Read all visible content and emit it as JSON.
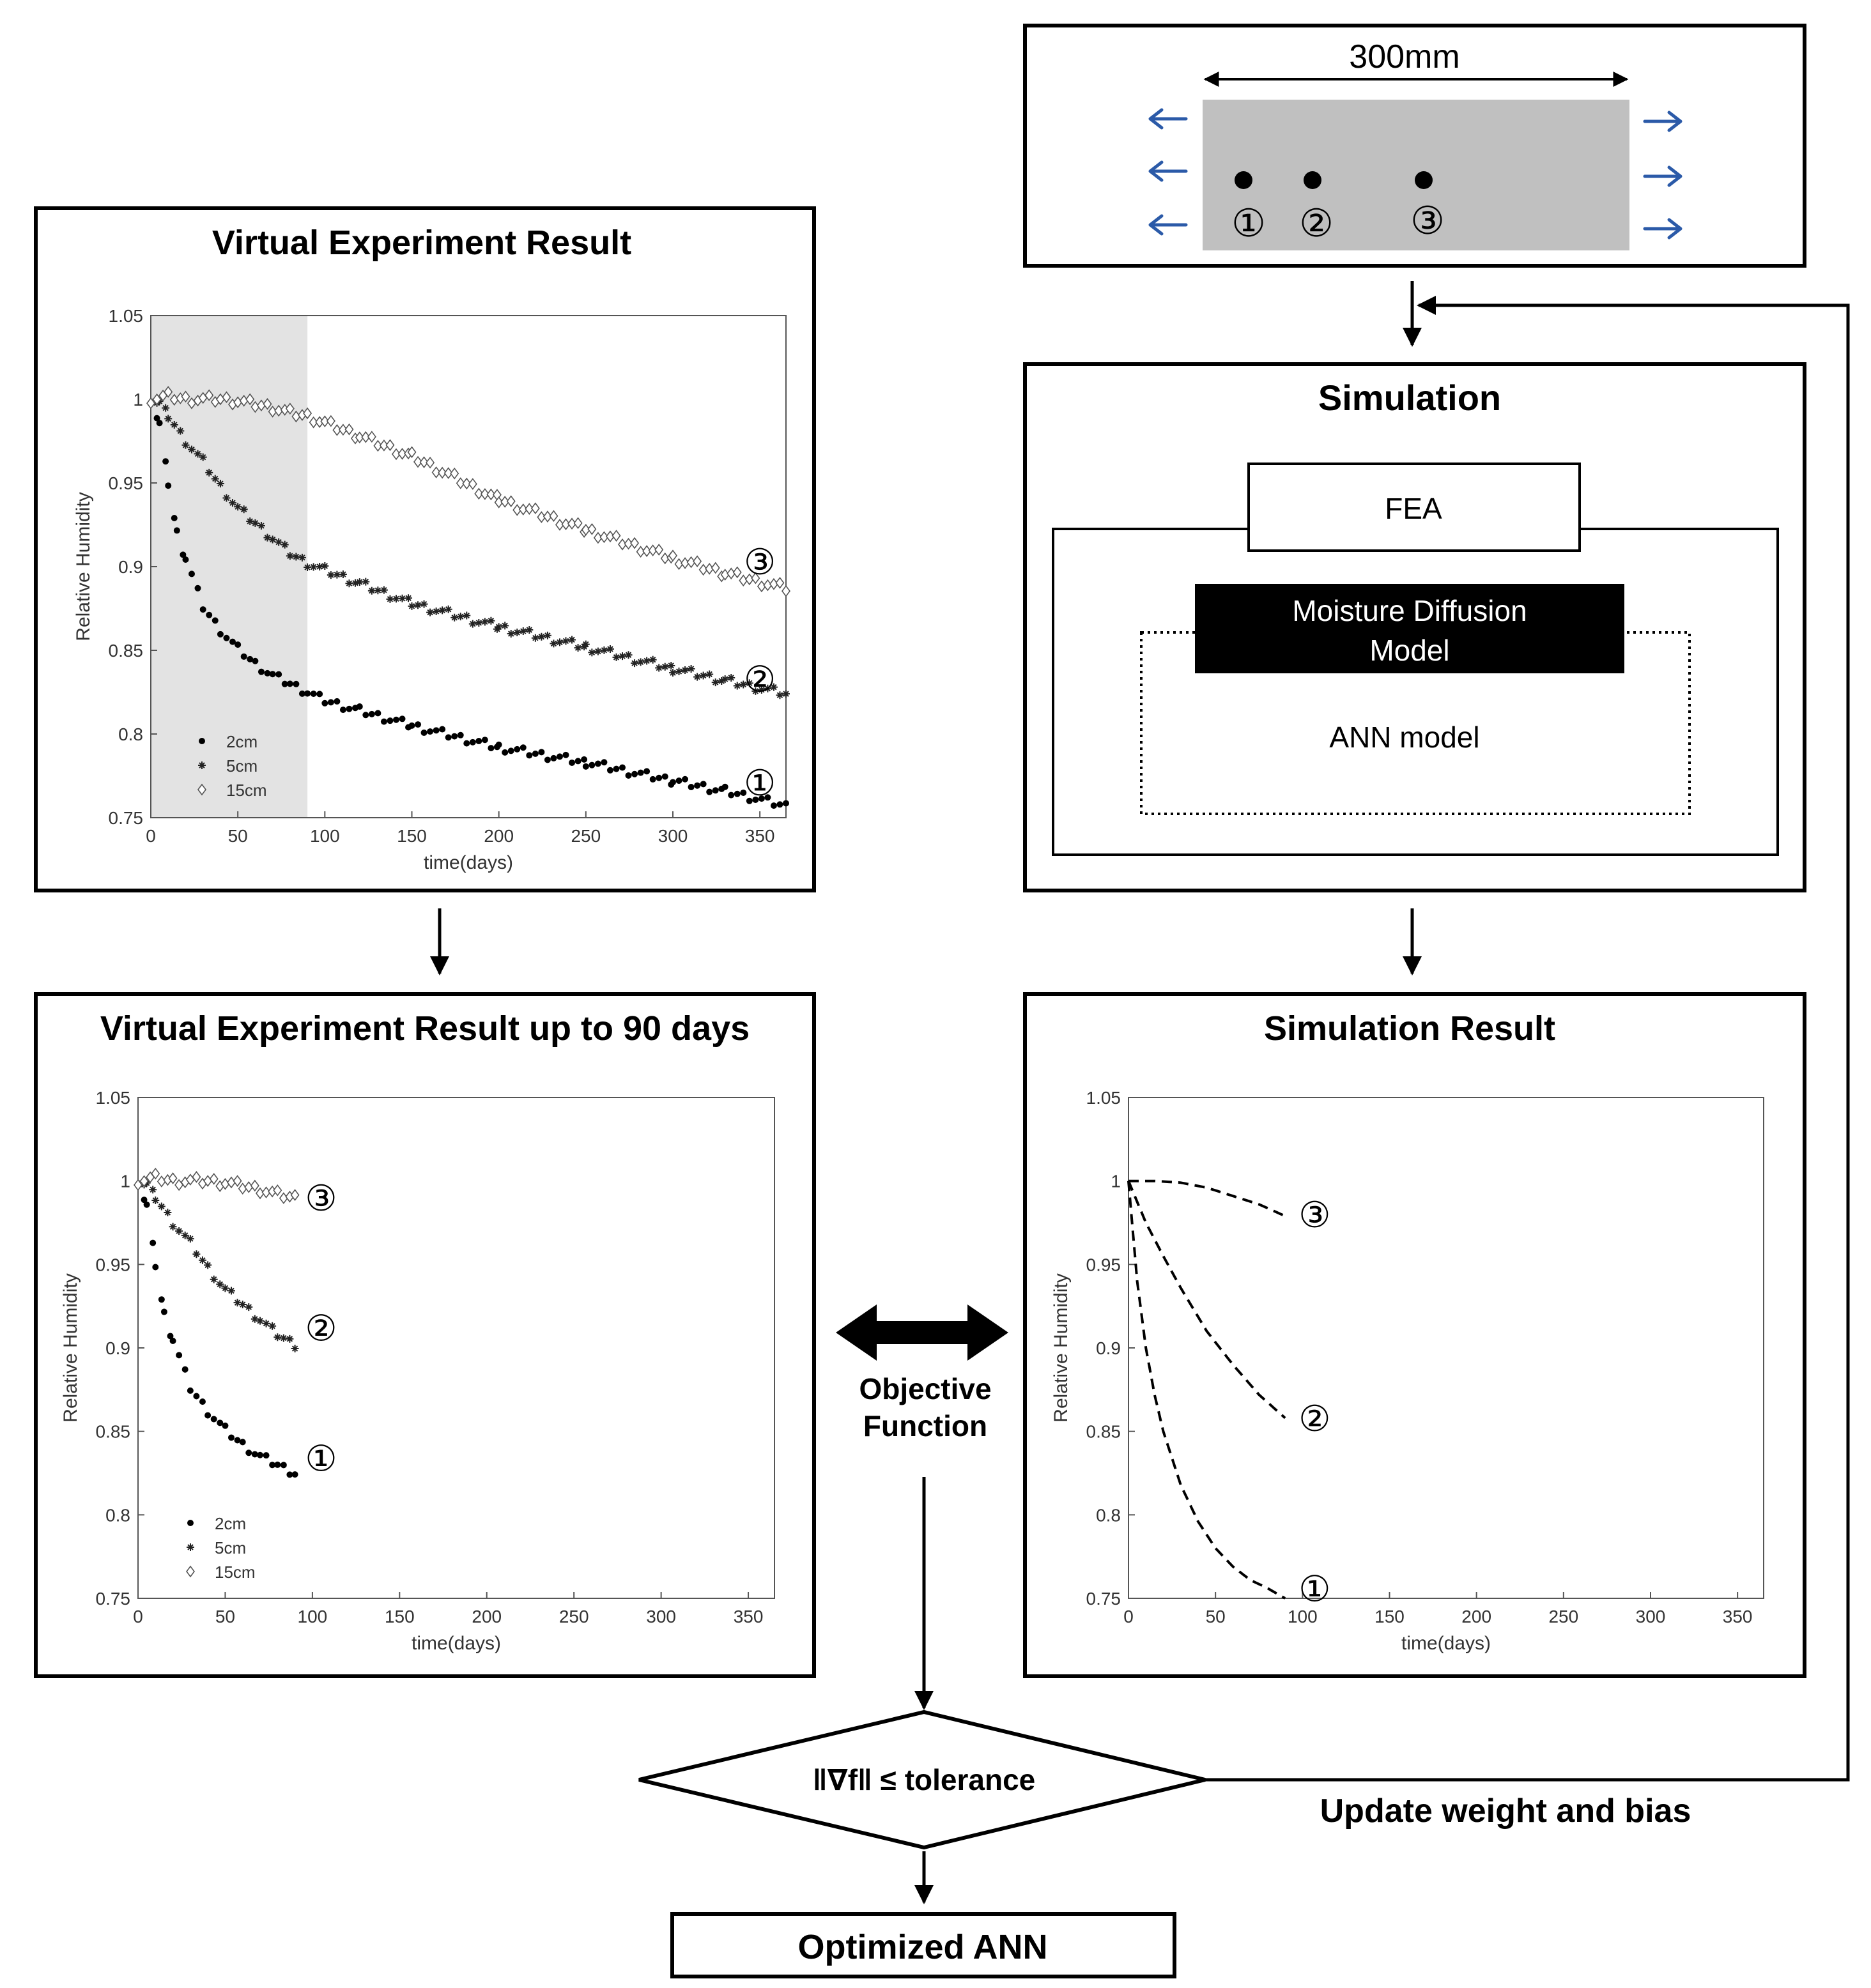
{
  "panels": {
    "virtual_full": {
      "title": "Virtual Experiment Result"
    },
    "virtual_90": {
      "title": "Virtual Experiment Result up to 90 days"
    },
    "specimen": {
      "dimension_label": "300mm",
      "sensor_labels": [
        "①",
        "②",
        "③"
      ]
    },
    "simulation": {
      "title": "Simulation",
      "fea_label": "FEA",
      "moisture_label_line1": "Moisture Diffusion",
      "moisture_label_line2": "Model",
      "ann_label": "ANN model"
    },
    "simulation_result": {
      "title": "Simulation Result"
    }
  },
  "flow": {
    "objective_line1": "Objective",
    "objective_line2": "Function",
    "decision_label": "‖∇f‖ ≤ tolerance",
    "update_label": "Update weight and bias",
    "output_label": "Optimized ANN"
  },
  "colors": {
    "arrow_blue": "#2b5aa8",
    "shade": "#e3e3e3",
    "specimen_fill": "#c0c0c0",
    "frame": "#000000"
  },
  "chart_data": [
    {
      "id": "virtual_full",
      "type": "scatter",
      "xlabel": "time(days)",
      "ylabel": "Relative Humidity",
      "xlim": [
        0,
        365
      ],
      "ylim": [
        0.75,
        1.05
      ],
      "xticks": [
        0,
        50,
        100,
        150,
        200,
        250,
        300,
        350
      ],
      "yticks": [
        0.75,
        0.8,
        0.85,
        0.9,
        0.95,
        1,
        1.05
      ],
      "shaded_x_range": [
        0,
        90
      ],
      "legend": {
        "position": "bottom-left",
        "entries": [
          "2cm",
          "5cm",
          "15cm"
        ]
      },
      "curve_labels": [
        "③",
        "②",
        "①"
      ],
      "series": [
        {
          "name": "2cm",
          "marker": "dot",
          "x": [
            0,
            5,
            10,
            15,
            20,
            30,
            40,
            50,
            60,
            70,
            80,
            90,
            100,
            120,
            150,
            200,
            250,
            300,
            330,
            365
          ],
          "y": [
            1.0,
            0.985,
            0.95,
            0.92,
            0.905,
            0.876,
            0.862,
            0.851,
            0.842,
            0.835,
            0.83,
            0.825,
            0.82,
            0.814,
            0.805,
            0.792,
            0.783,
            0.772,
            0.766,
            0.757
          ]
        },
        {
          "name": "5cm",
          "marker": "star",
          "x": [
            0,
            5,
            10,
            20,
            30,
            40,
            50,
            60,
            70,
            80,
            90,
            100,
            120,
            150,
            200,
            250,
            300,
            330,
            365
          ],
          "y": [
            1.0,
            0.998,
            0.99,
            0.975,
            0.963,
            0.948,
            0.935,
            0.926,
            0.917,
            0.908,
            0.902,
            0.898,
            0.89,
            0.878,
            0.864,
            0.852,
            0.839,
            0.832,
            0.824
          ]
        },
        {
          "name": "15cm",
          "marker": "diamond",
          "x": [
            0,
            10,
            20,
            30,
            40,
            50,
            60,
            70,
            80,
            90,
            100,
            120,
            150,
            200,
            250,
            300,
            330,
            365
          ],
          "y": [
            1.0,
            1.002,
            1.0,
            1.0,
            1.0,
            0.999,
            0.997,
            0.995,
            0.992,
            0.99,
            0.986,
            0.978,
            0.966,
            0.94,
            0.922,
            0.905,
            0.896,
            0.887
          ]
        }
      ]
    },
    {
      "id": "virtual_90",
      "type": "scatter",
      "xlabel": "time(days)",
      "ylabel": "Relative Humidity",
      "xlim": [
        0,
        365
      ],
      "ylim": [
        0.75,
        1.05
      ],
      "xticks": [
        0,
        50,
        100,
        150,
        200,
        250,
        300,
        350
      ],
      "yticks": [
        0.75,
        0.8,
        0.85,
        0.9,
        0.95,
        1,
        1.05
      ],
      "legend": {
        "position": "bottom-left",
        "entries": [
          "2cm",
          "5cm",
          "15cm"
        ]
      },
      "curve_labels": [
        "③",
        "②",
        "①"
      ],
      "series": [
        {
          "name": "2cm",
          "marker": "dot",
          "x": [
            0,
            5,
            10,
            15,
            20,
            30,
            40,
            50,
            60,
            70,
            80,
            90
          ],
          "y": [
            1.0,
            0.985,
            0.95,
            0.92,
            0.905,
            0.876,
            0.862,
            0.851,
            0.842,
            0.835,
            0.83,
            0.825
          ]
        },
        {
          "name": "5cm",
          "marker": "star",
          "x": [
            0,
            5,
            10,
            20,
            30,
            40,
            50,
            60,
            70,
            80,
            90
          ],
          "y": [
            1.0,
            0.998,
            0.99,
            0.975,
            0.963,
            0.948,
            0.935,
            0.926,
            0.917,
            0.908,
            0.902
          ]
        },
        {
          "name": "15cm",
          "marker": "diamond",
          "x": [
            0,
            10,
            20,
            30,
            40,
            50,
            60,
            70,
            80,
            90
          ],
          "y": [
            1.0,
            1.002,
            1.0,
            1.0,
            1.0,
            0.999,
            0.997,
            0.995,
            0.992,
            0.99
          ]
        }
      ]
    },
    {
      "id": "simulation_result",
      "type": "line",
      "xlabel": "time(days)",
      "ylabel": "Relative Humidity",
      "xlim": [
        0,
        365
      ],
      "ylim": [
        0.75,
        1.05
      ],
      "xticks": [
        0,
        50,
        100,
        150,
        200,
        250,
        300,
        350
      ],
      "yticks": [
        0.75,
        0.8,
        0.85,
        0.9,
        0.95,
        1,
        1.05
      ],
      "curve_labels": [
        "③",
        "②",
        "①"
      ],
      "series": [
        {
          "name": "15cm",
          "style": "dashed",
          "x": [
            0,
            15,
            30,
            45,
            60,
            75,
            90
          ],
          "y": [
            1.0,
            1.0,
            0.999,
            0.996,
            0.991,
            0.986,
            0.979
          ]
        },
        {
          "name": "5cm",
          "style": "dashed",
          "x": [
            0,
            10,
            20,
            30,
            45,
            60,
            75,
            90
          ],
          "y": [
            1.0,
            0.975,
            0.955,
            0.936,
            0.91,
            0.89,
            0.872,
            0.858
          ]
        },
        {
          "name": "2cm",
          "style": "dashed",
          "x": [
            0,
            5,
            10,
            15,
            20,
            30,
            40,
            50,
            60,
            70,
            80,
            90
          ],
          "y": [
            1.0,
            0.94,
            0.9,
            0.872,
            0.85,
            0.818,
            0.796,
            0.78,
            0.769,
            0.761,
            0.756,
            0.75
          ]
        }
      ]
    }
  ]
}
